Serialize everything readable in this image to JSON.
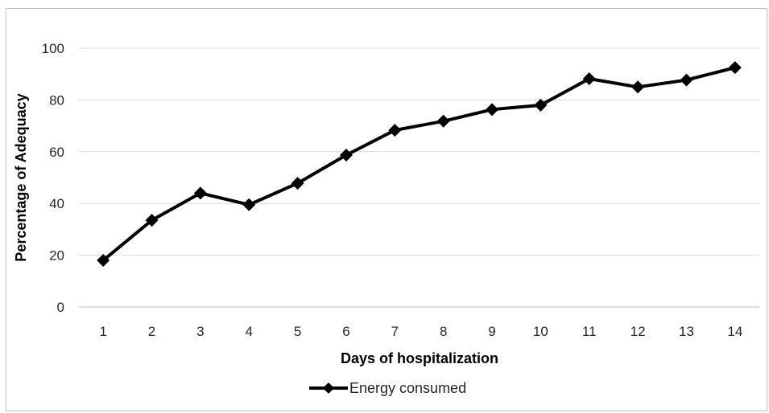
{
  "chart_data": {
    "type": "line",
    "title": "",
    "xlabel": "Days of hospitalization",
    "ylabel": "Percentage of Adequacy",
    "categories": [
      "1",
      "2",
      "3",
      "4",
      "5",
      "6",
      "7",
      "8",
      "9",
      "10",
      "11",
      "12",
      "13",
      "14"
    ],
    "ylim": [
      0,
      100
    ],
    "yticks": [
      0,
      20,
      40,
      60,
      80,
      100
    ],
    "grid": true,
    "legend_position": "bottom",
    "series": [
      {
        "name": "Energy consumed",
        "color": "#000000",
        "marker": "diamond",
        "values": [
          18,
          33.5,
          44,
          39.5,
          47.8,
          58.7,
          68.3,
          71.8,
          76.3,
          78,
          88.2,
          85,
          87.7,
          92.5
        ]
      }
    ]
  }
}
